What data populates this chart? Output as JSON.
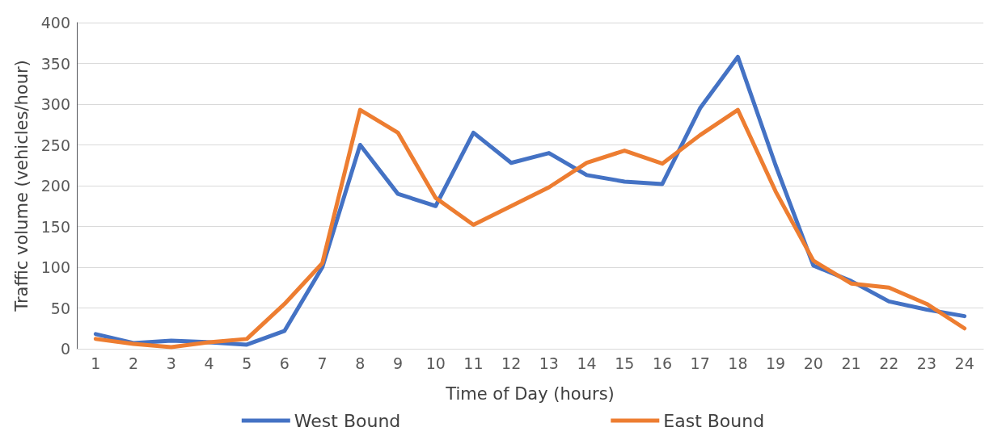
{
  "chart_data": {
    "type": "line",
    "xlabel": "Time of Day (hours)",
    "ylabel": "Traffic volume (vehicles/hour)",
    "x": [
      1,
      2,
      3,
      4,
      5,
      6,
      7,
      8,
      9,
      10,
      11,
      12,
      13,
      14,
      15,
      16,
      17,
      18,
      19,
      20,
      21,
      22,
      23,
      24
    ],
    "xlim": [
      0.5,
      24.5
    ],
    "xticks": [
      1,
      2,
      3,
      4,
      5,
      6,
      7,
      8,
      9,
      10,
      11,
      12,
      13,
      14,
      15,
      16,
      17,
      18,
      19,
      20,
      21,
      22,
      23,
      24
    ],
    "series": [
      {
        "name": "West Bound",
        "color": "#4472c4",
        "values": [
          18,
          7,
          10,
          8,
          5,
          22,
          100,
          250,
          190,
          175,
          265,
          228,
          240,
          213,
          205,
          202,
          295,
          358,
          225,
          102,
          83,
          58,
          48,
          40
        ]
      },
      {
        "name": "East Bound",
        "color": "#ed7d31",
        "values": [
          12,
          6,
          2,
          8,
          12,
          55,
          105,
          293,
          265,
          185,
          152,
          175,
          198,
          228,
          243,
          227,
          262,
          293,
          193,
          108,
          80,
          75,
          55,
          25
        ]
      }
    ],
    "ylim": [
      0,
      400
    ],
    "yticks": [
      0,
      50,
      100,
      150,
      200,
      250,
      300,
      350,
      400
    ],
    "grid": "y",
    "legend": "bottom",
    "marker": "none",
    "line_style": "solid"
  }
}
